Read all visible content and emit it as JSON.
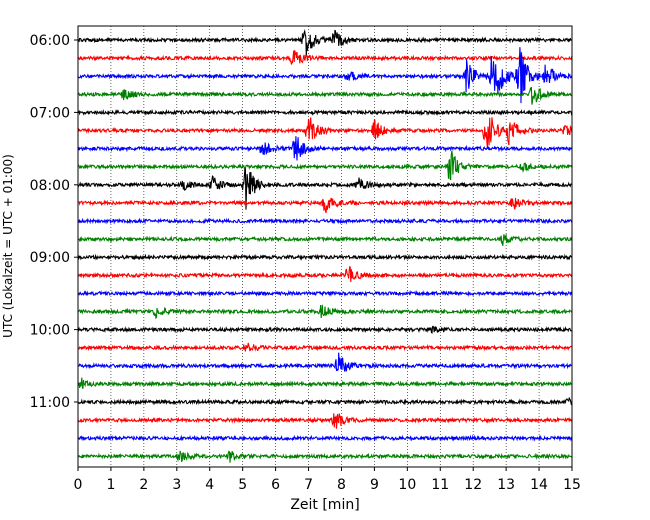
{
  "chart_data": {
    "type": "line",
    "title": "",
    "xlabel": "Zeit  [min]",
    "ylabel": "UTC (Lokalzeit = UTC + 01:00)",
    "xlim": [
      0,
      15
    ],
    "x_ticks": [
      "0",
      "1",
      "2",
      "3",
      "4",
      "5",
      "6",
      "7",
      "8",
      "9",
      "10",
      "11",
      "12",
      "13",
      "14",
      "15"
    ],
    "y_tick_labels": [
      "06:00",
      "07:00",
      "08:00",
      "09:00",
      "10:00",
      "11:00"
    ],
    "trace_interval_min": 15,
    "trace_colors": [
      "#000000",
      "#ff0000",
      "#0000ff",
      "#008000"
    ],
    "grid": "vertical dotted",
    "traces": [
      {
        "time": "06:00",
        "color": "#000000",
        "events": [
          {
            "t": 6.9,
            "amp": 1.0
          },
          {
            "t": 7.8,
            "amp": 0.5
          }
        ]
      },
      {
        "time": "06:15",
        "color": "#ff0000",
        "events": [
          {
            "t": 6.5,
            "amp": 0.6
          }
        ]
      },
      {
        "time": "06:30",
        "color": "#0000ff",
        "events": [
          {
            "t": 8.2,
            "amp": 0.3
          },
          {
            "t": 11.8,
            "amp": 1.0
          },
          {
            "t": 12.6,
            "amp": 2.2
          },
          {
            "t": 13.4,
            "amp": 1.8
          },
          {
            "t": 14.2,
            "amp": 0.7
          }
        ]
      },
      {
        "time": "06:45",
        "color": "#008000",
        "events": [
          {
            "t": 1.4,
            "amp": 0.3
          },
          {
            "t": 13.8,
            "amp": 0.6
          }
        ]
      },
      {
        "time": "07:00",
        "color": "#000000",
        "events": []
      },
      {
        "time": "07:15",
        "color": "#ff0000",
        "events": [
          {
            "t": 7.0,
            "amp": 0.9
          },
          {
            "t": 9.0,
            "amp": 0.6
          },
          {
            "t": 12.4,
            "amp": 1.4
          },
          {
            "t": 13.1,
            "amp": 0.8
          },
          {
            "t": 14.8,
            "amp": 0.3
          }
        ]
      },
      {
        "time": "07:30",
        "color": "#0000ff",
        "events": [
          {
            "t": 5.6,
            "amp": 0.4
          },
          {
            "t": 6.6,
            "amp": 0.9
          }
        ]
      },
      {
        "time": "07:45",
        "color": "#008000",
        "events": [
          {
            "t": 11.3,
            "amp": 1.0
          },
          {
            "t": 13.5,
            "amp": 0.2
          }
        ]
      },
      {
        "time": "08:00",
        "color": "#000000",
        "events": [
          {
            "t": 3.2,
            "amp": 0.3
          },
          {
            "t": 4.1,
            "amp": 0.5
          },
          {
            "t": 5.1,
            "amp": 1.3
          },
          {
            "t": 8.5,
            "amp": 0.4
          }
        ]
      },
      {
        "time": "08:15",
        "color": "#ff0000",
        "events": [
          {
            "t": 7.5,
            "amp": 0.6
          },
          {
            "t": 13.2,
            "amp": 0.4
          }
        ]
      },
      {
        "time": "08:30",
        "color": "#0000ff",
        "events": []
      },
      {
        "time": "08:45",
        "color": "#008000",
        "events": [
          {
            "t": 12.9,
            "amp": 0.3
          }
        ]
      },
      {
        "time": "09:00",
        "color": "#000000",
        "events": []
      },
      {
        "time": "09:15",
        "color": "#ff0000",
        "events": [
          {
            "t": 8.2,
            "amp": 0.5
          }
        ]
      },
      {
        "time": "09:30",
        "color": "#0000ff",
        "events": []
      },
      {
        "time": "09:45",
        "color": "#008000",
        "events": [
          {
            "t": 2.4,
            "amp": 0.4
          },
          {
            "t": 7.4,
            "amp": 0.4
          }
        ]
      },
      {
        "time": "10:00",
        "color": "#000000",
        "events": [
          {
            "t": 10.7,
            "amp": 0.2
          }
        ]
      },
      {
        "time": "10:15",
        "color": "#ff0000",
        "events": [
          {
            "t": 5.1,
            "amp": 0.3
          }
        ]
      },
      {
        "time": "10:30",
        "color": "#0000ff",
        "events": [
          {
            "t": 7.9,
            "amp": 0.7
          }
        ]
      },
      {
        "time": "10:45",
        "color": "#008000",
        "events": [
          {
            "t": 0.1,
            "amp": 0.3
          }
        ]
      },
      {
        "time": "11:00",
        "color": "#000000",
        "events": [
          {
            "t": 14.9,
            "amp": 0.2
          }
        ]
      },
      {
        "time": "11:15",
        "color": "#ff0000",
        "events": [
          {
            "t": 7.8,
            "amp": 0.6
          }
        ]
      },
      {
        "time": "11:30",
        "color": "#0000ff",
        "events": []
      },
      {
        "time": "11:45",
        "color": "#008000",
        "events": [
          {
            "t": 3.1,
            "amp": 0.3
          },
          {
            "t": 4.6,
            "amp": 0.3
          }
        ]
      }
    ]
  }
}
